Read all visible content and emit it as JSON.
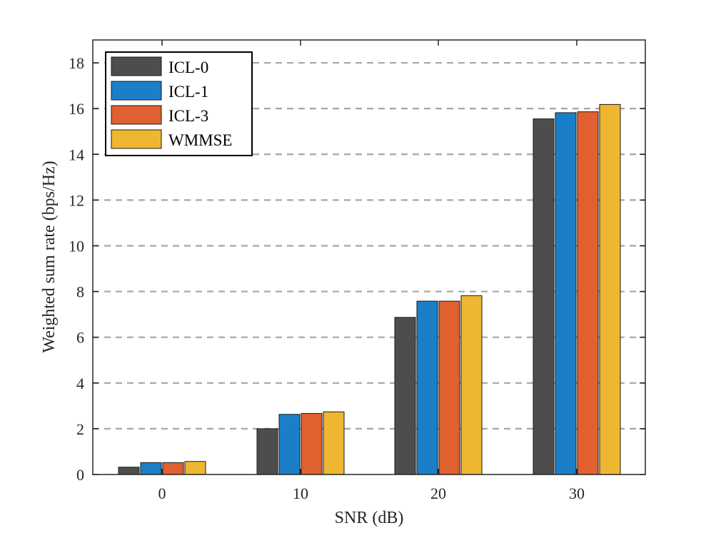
{
  "chart_data": {
    "type": "bar",
    "title": "",
    "xlabel": "SNR (dB)",
    "ylabel": "Weighted sum rate (bps/Hz)",
    "categories": [
      "0",
      "10",
      "20",
      "30"
    ],
    "ylim": [
      0,
      19
    ],
    "yticks": [
      0,
      2,
      4,
      6,
      8,
      10,
      12,
      14,
      16,
      18
    ],
    "grid": "y-dashed",
    "legend_position": "top-left",
    "series": [
      {
        "name": "ICL-0",
        "color": "#4d4d4d",
        "values": [
          0.32,
          2.0,
          6.87,
          15.55
        ]
      },
      {
        "name": "ICL-1",
        "color": "#1a7fc8",
        "values": [
          0.52,
          2.63,
          7.58,
          15.82
        ]
      },
      {
        "name": "ICL-3",
        "color": "#e06030",
        "values": [
          0.52,
          2.67,
          7.58,
          15.86
        ]
      },
      {
        "name": "WMMSE",
        "color": "#efb632",
        "values": [
          0.57,
          2.74,
          7.82,
          16.18
        ]
      }
    ]
  }
}
